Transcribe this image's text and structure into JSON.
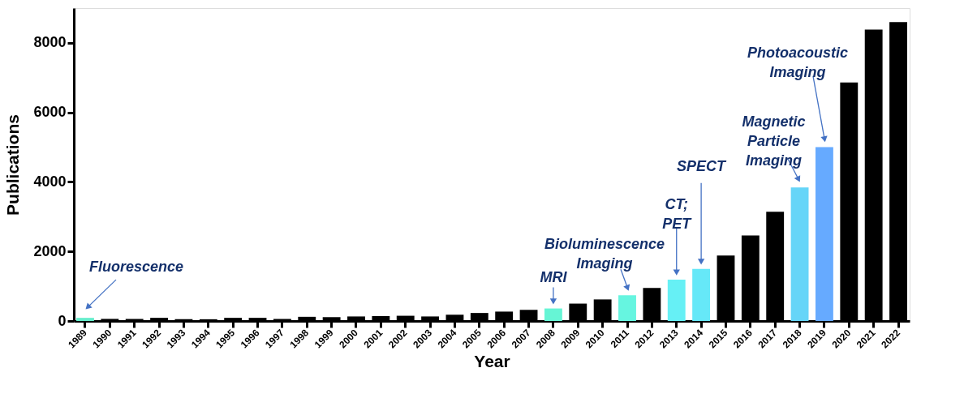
{
  "chart_data": {
    "type": "bar",
    "xlabel": "Year",
    "ylabel": "Publications",
    "categories": [
      "1989",
      "1990",
      "1991",
      "1992",
      "1993",
      "1994",
      "1995",
      "1996",
      "1997",
      "1998",
      "1999",
      "2000",
      "2001",
      "2002",
      "2003",
      "2004",
      "2005",
      "2006",
      "2007",
      "2008",
      "2009",
      "2010",
      "2011",
      "2012",
      "2013",
      "2014",
      "2015",
      "2016",
      "2017",
      "2018",
      "2019",
      "2020",
      "2021",
      "2022"
    ],
    "values": [
      90,
      60,
      60,
      90,
      50,
      50,
      90,
      90,
      60,
      120,
      110,
      130,
      140,
      150,
      130,
      180,
      230,
      270,
      320,
      360,
      500,
      620,
      740,
      950,
      1190,
      1500,
      1880,
      2460,
      3140,
      3840,
      5000,
      6860,
      8380,
      8600
    ],
    "colors": [
      "#66eecc",
      "#000000",
      "#000000",
      "#000000",
      "#000000",
      "#000000",
      "#000000",
      "#000000",
      "#000000",
      "#000000",
      "#000000",
      "#000000",
      "#000000",
      "#000000",
      "#000000",
      "#000000",
      "#000000",
      "#000000",
      "#000000",
      "#66f5d5",
      "#000000",
      "#000000",
      "#66f5e0",
      "#000000",
      "#66f0f5",
      "#66e8f8",
      "#000000",
      "#000000",
      "#000000",
      "#66d5f8",
      "#66aaff",
      "#000000",
      "#000000",
      "#000000"
    ],
    "ylim": [
      0,
      9000
    ],
    "yticks": [
      0,
      2000,
      4000,
      6000,
      8000
    ],
    "grid": false,
    "annotations": [
      {
        "text": "Fluorescence",
        "x": "1989",
        "y": 90
      },
      {
        "text": "MRI",
        "x": "2008",
        "y": 360
      },
      {
        "text": "Bioluminescence\nImaging",
        "x": "2011",
        "y": 740
      },
      "CT;\nPET",
      "SPECT",
      {
        "text": "Magnetic\nParticle\nImaging",
        "x": "2018",
        "y": 3840
      },
      "Photoacoustic\nImaging"
    ]
  }
}
